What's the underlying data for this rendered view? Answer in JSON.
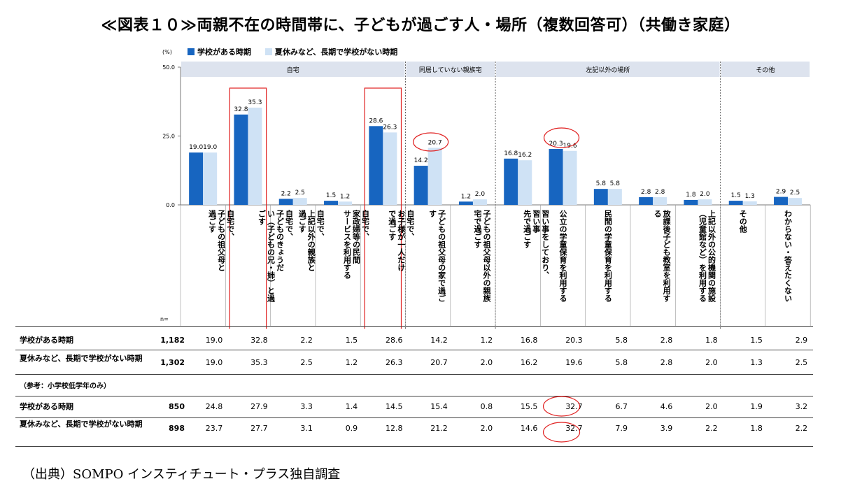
{
  "title": "≪図表１０≫両親不在の時間帯に、子どもが過ごす人・場所（複数回答可）（共働き家庭）",
  "source": "（出典）SOMPO インスティチュート・プラス独自調査",
  "legend": [
    {
      "label": "学校がある時期",
      "color": "#1765c0"
    },
    {
      "label": "夏休みなど、長期で学校がない時期",
      "color": "#cfe2f5"
    }
  ],
  "unit": "(%)",
  "n_label": "n=",
  "groups": [
    {
      "label": "自宅"
    },
    {
      "label": "同居していない親族宅"
    },
    {
      "label": "左記以外の場所"
    },
    {
      "label": "その他"
    }
  ],
  "chart_data": {
    "type": "bar",
    "ylim": [
      0,
      50
    ],
    "yticks": [
      "0.0",
      "25.0",
      "50.0"
    ],
    "categories": [
      "自宅で、子どもの祖父母と過ごす",
      "自宅で、子どものきょうだい（子どもの兄・姉）と過ごす",
      "自宅で、上記以外の親族と過ごす",
      "自宅で、家政婦等の民間サービスを利用する",
      "自宅で、お子様が一人だけで過ごす",
      "子どもの祖父母の家で過ごす",
      "子どもの祖父母以外の親族宅で過ごす",
      "習い事をしており、習い事先で過ごす",
      "公立の学童保育を利用する",
      "民間の学童保育を利用する",
      "放課後子ども教室を利用する",
      "上記以外の公的機関の施設（児童館など）を利用する",
      "その他",
      "わからない・答えたくない"
    ],
    "series": [
      {
        "name": "学校がある時期",
        "values": [
          19.0,
          32.8,
          2.2,
          1.5,
          28.6,
          14.2,
          1.2,
          16.8,
          20.3,
          5.8,
          2.8,
          1.8,
          1.5,
          2.9
        ]
      },
      {
        "name": "夏休みなど、長期で学校がない時期",
        "values": [
          19.0,
          35.3,
          2.5,
          1.2,
          26.3,
          20.7,
          2.0,
          16.2,
          19.6,
          5.8,
          2.8,
          2.0,
          1.3,
          2.5
        ]
      }
    ]
  },
  "vlabels": [
    "自宅で、\n子どもの祖父母と\n過ごす",
    "自宅で、\n子どものきょうだ\nい（子どもの兄・姉）と過\nごす",
    "自宅で、\n上記以外の親族と\n過ごす",
    "自宅で、\n家政婦等の民間\nサービスを利用する",
    "自宅で、\nお子様が一人だけ\nで過ごす",
    "子どもの祖父母の家で過ご\nす",
    "子どもの祖父母以外の親族\n宅で過ごす",
    "習い事をしており、\n習い事\n先で過ごす",
    "公立の学童保育を利用する",
    "民間の学童保育を利用する",
    "放課後子ども教室を利用す\nる",
    "上記以外の公的機関の施設\n（児童館など）を利用する",
    "その他",
    "わからない・答えたくない"
  ],
  "table": {
    "note": "（参考：小学校低学年のみ）",
    "rows": [
      {
        "label": "学校がある時期",
        "n": "1,182",
        "values": [
          "19.0",
          "32.8",
          "2.2",
          "1.5",
          "28.6",
          "14.2",
          "1.2",
          "16.8",
          "20.3",
          "5.8",
          "2.8",
          "1.8",
          "1.5",
          "2.9"
        ]
      },
      {
        "label": "夏休みなど、長期で学校がない時期",
        "n": "1,302",
        "values": [
          "19.0",
          "35.3",
          "2.5",
          "1.2",
          "26.3",
          "20.7",
          "2.0",
          "16.2",
          "19.6",
          "5.8",
          "2.8",
          "2.0",
          "1.3",
          "2.5"
        ]
      },
      {
        "label": "学校がある時期",
        "n": "850",
        "values": [
          "24.8",
          "27.9",
          "3.3",
          "1.4",
          "14.5",
          "15.4",
          "0.8",
          "15.5",
          "32.7",
          "6.7",
          "4.6",
          "2.0",
          "1.9",
          "3.2"
        ]
      },
      {
        "label": "夏休みなど、長期で学校がない時期",
        "n": "898",
        "values": [
          "23.7",
          "27.7",
          "3.1",
          "0.9",
          "12.8",
          "21.2",
          "2.0",
          "14.6",
          "32.7",
          "7.9",
          "3.9",
          "2.2",
          "1.8",
          "2.2"
        ]
      }
    ]
  }
}
